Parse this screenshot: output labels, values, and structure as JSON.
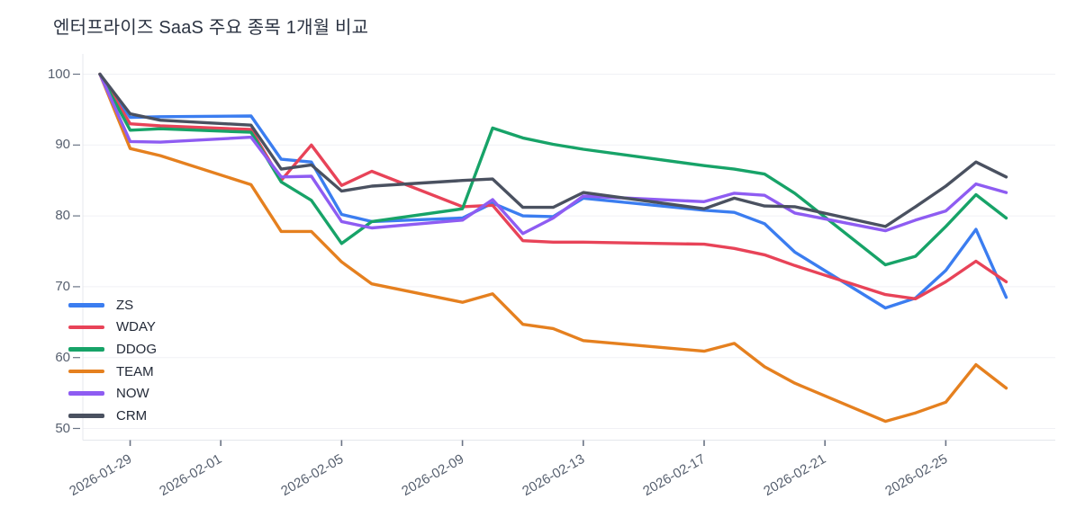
{
  "title": "엔터프라이즈 SaaS 주요 종목 1개월 비교",
  "legend": {
    "position": "inside-left",
    "items": [
      {
        "label": "ZS",
        "color": "#3b7df0"
      },
      {
        "label": "WDAY",
        "color": "#e84358"
      },
      {
        "label": "DDOG",
        "color": "#17a368"
      },
      {
        "label": "TEAM",
        "color": "#e5801f"
      },
      {
        "label": "NOW",
        "color": "#8e5cf2"
      },
      {
        "label": "CRM",
        "color": "#4a5160"
      }
    ]
  },
  "chart_data": {
    "type": "line",
    "title": "엔터프라이즈 SaaS 주요 종목 1개월 비교",
    "xlabel": "",
    "ylabel": "",
    "grid": "horizontal",
    "y_ticks": [
      50,
      60,
      70,
      80,
      90,
      100
    ],
    "ylim": [
      48,
      103
    ],
    "x_tick_labels": [
      "2026-01-29",
      "2026-02-01",
      "2026-02-05",
      "2026-02-09",
      "2026-02-13",
      "2026-02-17",
      "2026-02-21",
      "2026-02-25"
    ],
    "x_tick_day_offsets": [
      1,
      4,
      8,
      12,
      16,
      20,
      24,
      28
    ],
    "x": [
      "2026-01-28",
      "2026-01-29",
      "2026-01-30",
      "2026-02-02",
      "2026-02-03",
      "2026-02-04",
      "2026-02-05",
      "2026-02-06",
      "2026-02-09",
      "2026-02-10",
      "2026-02-11",
      "2026-02-12",
      "2026-02-13",
      "2026-02-17",
      "2026-02-18",
      "2026-02-19",
      "2026-02-20",
      "2026-02-23",
      "2026-02-24",
      "2026-02-25",
      "2026-02-26",
      "2026-02-27"
    ],
    "x_day_offsets": [
      0,
      1,
      2,
      5,
      6,
      7,
      8,
      9,
      12,
      13,
      14,
      15,
      16,
      20,
      21,
      22,
      23,
      26,
      27,
      28,
      29,
      30
    ],
    "series": [
      {
        "name": "ZS",
        "color": "#3b7df0",
        "values": [
          100,
          93.9,
          94.0,
          94.1,
          88.0,
          87.6,
          80.2,
          79.2,
          79.7,
          81.8,
          80.0,
          79.9,
          82.5,
          80.8,
          80.5,
          78.9,
          74.9,
          67.0,
          68.4,
          72.3,
          78.1,
          68.5
        ]
      },
      {
        "name": "WDAY",
        "color": "#e84358",
        "values": [
          100,
          93.0,
          92.7,
          92.2,
          85.0,
          90.0,
          84.3,
          86.3,
          81.3,
          81.5,
          76.5,
          76.3,
          76.3,
          76.0,
          75.4,
          74.5,
          73.0,
          68.9,
          68.3,
          70.7,
          73.6,
          70.7
        ]
      },
      {
        "name": "DDOG",
        "color": "#17a368",
        "values": [
          100,
          92.1,
          92.3,
          91.8,
          84.8,
          82.2,
          76.1,
          79.2,
          81.0,
          92.4,
          91.0,
          90.1,
          89.4,
          87.1,
          86.6,
          85.9,
          83.2,
          73.1,
          74.3,
          78.5,
          83.0,
          79.7
        ]
      },
      {
        "name": "TEAM",
        "color": "#e5801f",
        "values": [
          100,
          89.5,
          88.5,
          84.4,
          77.8,
          77.8,
          73.5,
          70.4,
          67.8,
          69.0,
          64.7,
          64.1,
          62.4,
          60.9,
          62.0,
          58.7,
          56.4,
          51.0,
          52.2,
          53.7,
          59.0,
          55.7
        ]
      },
      {
        "name": "NOW",
        "color": "#8e5cf2",
        "values": [
          100,
          90.5,
          90.4,
          91.1,
          85.5,
          85.6,
          79.2,
          78.3,
          79.4,
          82.3,
          77.5,
          79.7,
          82.8,
          82.0,
          83.2,
          82.9,
          80.4,
          77.9,
          79.4,
          80.7,
          84.5,
          83.3
        ]
      },
      {
        "name": "CRM",
        "color": "#4a5160",
        "values": [
          100,
          94.4,
          93.5,
          92.8,
          86.6,
          87.2,
          83.5,
          84.2,
          85.0,
          85.2,
          81.2,
          81.2,
          83.3,
          81.0,
          82.5,
          81.4,
          81.3,
          78.5,
          81.3,
          84.2,
          87.6,
          85.5
        ]
      }
    ]
  },
  "axis_colors": {
    "grid": "#f0f1f5",
    "axis_line": "#e4e7ec",
    "tick_mark": "#6a7384",
    "tick_label": "#57606f"
  }
}
